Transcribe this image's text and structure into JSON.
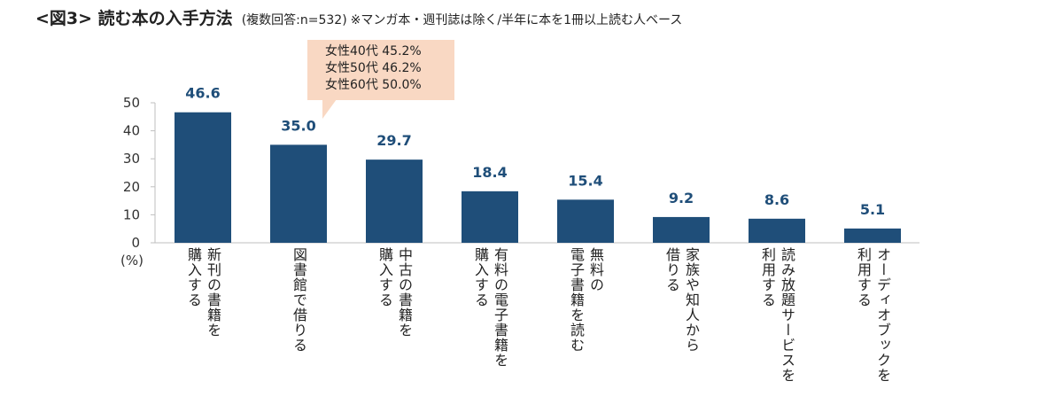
{
  "title": {
    "main": "<図3> 読む本の入手方法",
    "sub": "(複数回答:n=532)",
    "note": "※マンガ本・週刊誌は除く/半年に本を1冊以上読む人ベース"
  },
  "callout": {
    "lines": [
      "女性40代 45.2%",
      "女性50代 46.2%",
      "女性60代 50.0%"
    ]
  },
  "colors": {
    "bar": "#1f4e79",
    "label": "#1f4e79",
    "callout": "#f9d8c3"
  },
  "chart_data": {
    "type": "bar",
    "unit_label": "(%)",
    "ylim": [
      0,
      50
    ],
    "yticks": [
      0,
      10,
      20,
      30,
      40,
      50
    ],
    "grid": false,
    "categories": [
      "新刊の書籍を\n購入する",
      "図書館で借りる",
      "中古の書籍を\n購入する",
      "有料の電子書籍を\n購入する",
      "無料の\n電子書籍を読む",
      "家族や知人から\n借りる",
      "読み放題サービスを\n利用する",
      "オーディオブックを\n利用する"
    ],
    "values": [
      46.6,
      35.0,
      29.7,
      18.4,
      15.4,
      9.2,
      8.6,
      5.1
    ],
    "value_labels": [
      "46.6",
      "35.0",
      "29.7",
      "18.4",
      "15.4",
      "9.2",
      "8.6",
      "5.1"
    ]
  }
}
